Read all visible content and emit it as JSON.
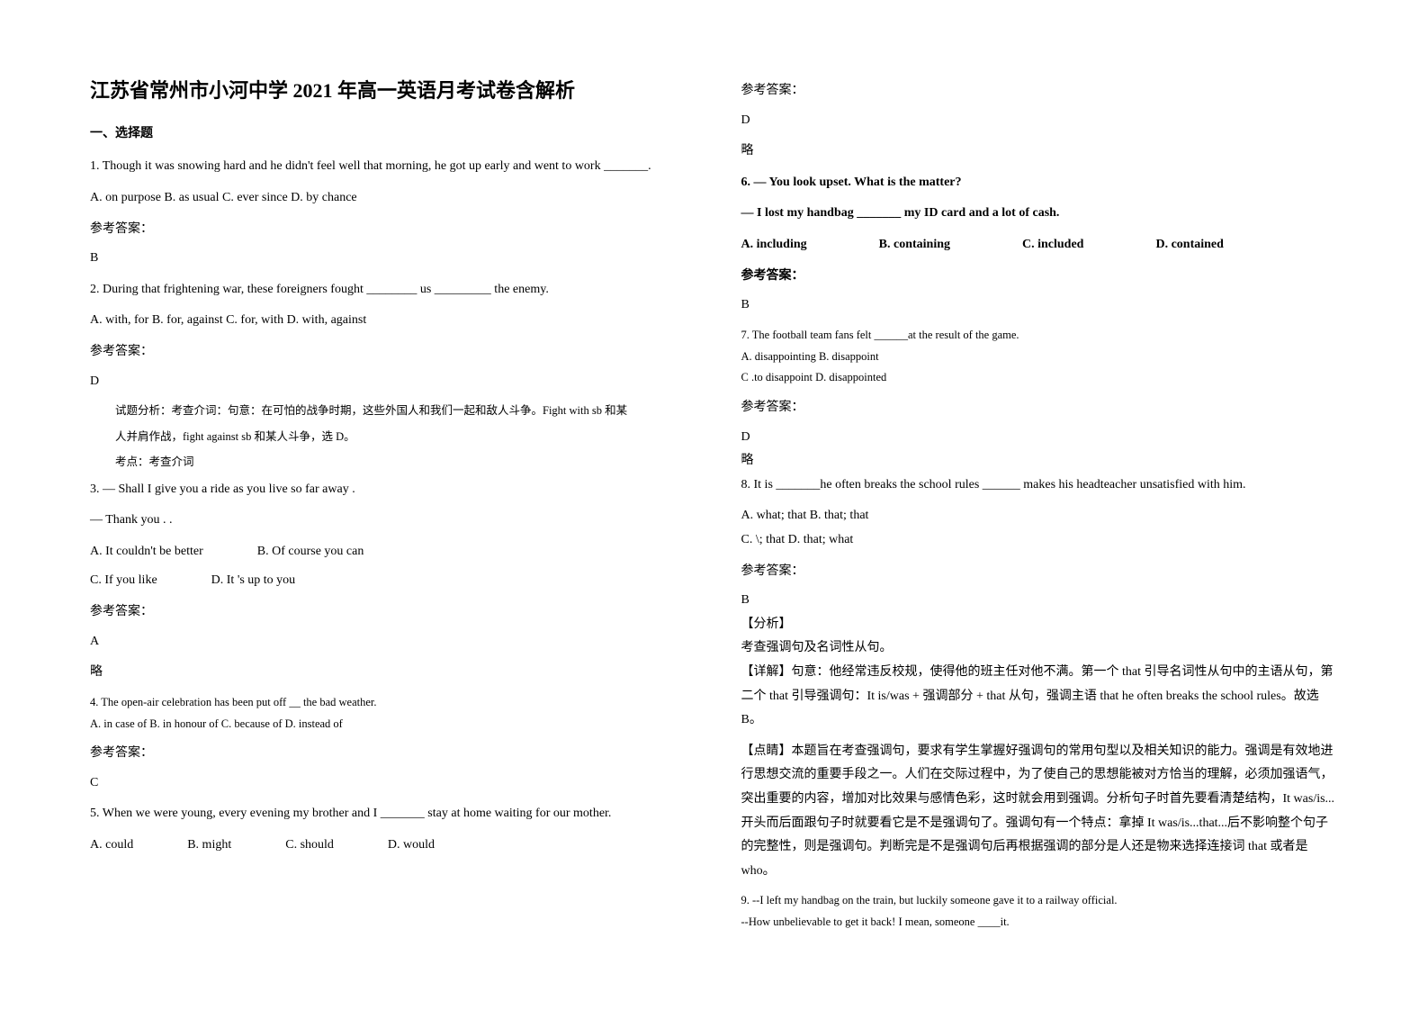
{
  "left": {
    "title": "江苏省常州市小河中学 2021 年高一英语月考试卷含解析",
    "section1": "一、选择题",
    "q1": {
      "text": "1. Though it was snowing hard and he didn't feel well that morning, he got up early and went to work _______.",
      "opts": "A. on purpose    B. as usual    C. ever since    D. by chance",
      "ansLabel": "参考答案：",
      "ans": "B"
    },
    "q2": {
      "text": "2. During that frightening war, these foreigners fought ________ us _________ the enemy.",
      "opts": "  A. with, for    B. for, against    C. for, with    D. with, against",
      "ansLabel": "参考答案：",
      "ans": "D",
      "analysis1": "试题分析：考查介词：句意：在可怕的战争时期，这些外国人和我们一起和敌人斗争。Fight with sb 和某",
      "analysis2": "人并肩作战，fight against sb 和某人斗争，选 D。",
      "analysis3": "考点：考查介词"
    },
    "q3": {
      "l1": "3. — Shall I give you a ride as you live so far away .",
      "l2": "  — Thank you . ___ .",
      "optA": "A. It couldn't be better",
      "optB": "B. Of course you can",
      "optC": "C. If you like",
      "optD": "D. It 's up to you",
      "ansLabel": "参考答案：",
      "ans": "A",
      "note": "略"
    },
    "q4": {
      "text": "4. The open-air celebration has been put off __ the bad weather.",
      "opts": "     A. in case of    B. in honour of     C. because of       D. instead of",
      "ansLabel": "参考答案：",
      "ans": "C"
    },
    "q5": {
      "text": "5. When we were young, every evening my brother and I _______ stay at home waiting for our mother.",
      "optA": "A. could",
      "optB": "B. might",
      "optC": "C. should",
      "optD": "D. would"
    }
  },
  "right": {
    "q5ansLabel": "参考答案：",
    "q5ans": "D",
    "q5note": "略",
    "q6": {
      "l1": "6. — You look upset. What is the matter?",
      "l2": "   — I lost my handbag _______ my ID card and a lot of cash.",
      "optA": "A. including",
      "optB": "B. containing",
      "optC": "C. included",
      "optD": "D. contained",
      "ansLabel": "参考答案：",
      "ans": "B"
    },
    "q7": {
      "text": "7. The football team fans felt ______at the result of the game.",
      "optsL1": "       A. disappointing      B. disappoint",
      "optsL2": "       C .to disappoint      D. disappointed",
      "ansLabel": "参考答案：",
      "ans": "D",
      "note": "略"
    },
    "q8": {
      "text": "8. It is _______he often breaks the school rules ______ makes his headteacher unsatisfied with him.",
      "optsL1": "A. what; that    B. that; that",
      "optsL2": "C. \\; that    D. that; what",
      "ansLabel": "参考答案：",
      "ans": "B",
      "analysisTitle": "【分析】",
      "analysisL1": "考查强调句及名词性从句。",
      "detail": "【详解】句意：他经常违反校规，使得他的班主任对他不满。第一个 that 引导名词性从句中的主语从句，第二个 that 引导强调句：It is/was + 强调部分 + that 从句，强调主语 that he often breaks the school rules。故选 B。",
      "point": "【点睛】本题旨在考查强调句，要求有学生掌握好强调句的常用句型以及相关知识的能力。强调是有效地进行思想交流的重要手段之一。人们在交际过程中，为了使自己的思想能被对方恰当的理解，必须加强语气，突出重要的内容，增加对比效果与感情色彩，这时就会用到强调。分析句子时首先要看清楚结构，It was/is...开头而后面跟句子时就要看它是不是强调句了。强调句有一个特点：拿掉 It was/is...that...后不影响整个句子的完整性，则是强调句。判断完是不是强调句后再根据强调的部分是人还是物来选择连接词 that 或者是 who。"
    },
    "q9": {
      "l1": "9. --I left my handbag on the train, but luckily someone gave it to a railway official.",
      "l2": "   --How unbelievable to get it back! I mean, someone ____it."
    }
  }
}
